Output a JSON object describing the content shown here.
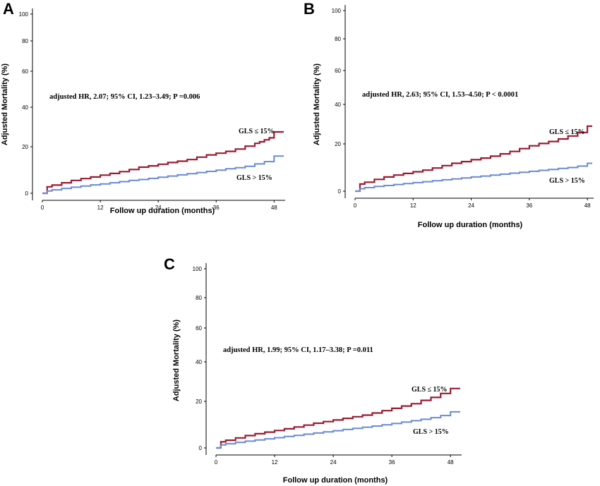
{
  "chart_data": [
    {
      "id": "A",
      "panel_label": "A",
      "type": "line",
      "xlabel": "Follow up duration (months)",
      "ylabel": "Adjusted Mortality (%)",
      "xticks": [
        "0",
        "12",
        "24",
        "36",
        "48"
      ],
      "yticks": [
        "0",
        "20",
        "40",
        "60",
        "80",
        "100"
      ],
      "xlim": [
        0,
        50
      ],
      "ylim": [
        0,
        100
      ],
      "annotation": "adjusted HR, 2.07; 95% CI, 1.23–3.49; P =0.006",
      "series": [
        {
          "name": "GLS ≤ 15%",
          "color": "#9b1b30",
          "x": [
            0,
            1,
            2,
            4,
            6,
            8,
            10,
            12,
            14,
            16,
            18,
            20,
            22,
            24,
            26,
            28,
            30,
            32,
            34,
            36,
            38,
            40,
            42,
            44,
            45,
            46,
            47,
            48,
            50
          ],
          "y": [
            0,
            2.8,
            3.5,
            4.5,
            5.5,
            6.3,
            7.0,
            7.8,
            8.5,
            9.3,
            10.2,
            11.2,
            11.8,
            12.5,
            13.2,
            13.8,
            14.5,
            15.5,
            16.5,
            17.2,
            18.0,
            19.0,
            20.3,
            21.7,
            22.5,
            23.5,
            24.5,
            27.5,
            27.5
          ]
        },
        {
          "name": "GLS > 15%",
          "color": "#6a8ad4",
          "x": [
            0,
            1,
            2,
            4,
            6,
            8,
            10,
            12,
            14,
            16,
            18,
            20,
            22,
            24,
            26,
            28,
            30,
            32,
            34,
            36,
            38,
            40,
            42,
            44,
            46,
            48,
            50
          ],
          "y": [
            0,
            1.0,
            1.5,
            2.1,
            2.6,
            3.1,
            3.6,
            4.0,
            4.5,
            5.0,
            5.5,
            5.9,
            6.4,
            6.9,
            7.4,
            7.9,
            8.4,
            8.9,
            9.4,
            9.9,
            10.5,
            11.0,
            11.6,
            12.6,
            13.6,
            16.0,
            16.0
          ]
        }
      ]
    },
    {
      "id": "B",
      "panel_label": "B",
      "type": "line",
      "xlabel": "Follow up duration (months)",
      "ylabel": "Adjusted Mortality (%)",
      "xticks": [
        "0",
        "12",
        "24",
        "36",
        "48"
      ],
      "yticks": [
        "0",
        "20",
        "40",
        "60",
        "80",
        "100"
      ],
      "xlim": [
        0,
        49
      ],
      "ylim": [
        0,
        100
      ],
      "annotation": "adjusted HR, 2.63; 95% CI, 1.53–4.50; P < 0.0001",
      "series": [
        {
          "name": "GLS ≤ 15%",
          "color": "#9b1b30",
          "x": [
            0,
            1,
            2,
            4,
            6,
            8,
            10,
            12,
            14,
            16,
            18,
            20,
            22,
            24,
            26,
            28,
            30,
            32,
            34,
            36,
            38,
            40,
            42,
            44,
            46,
            48,
            49
          ],
          "y": [
            0,
            3.0,
            3.8,
            5.0,
            6.0,
            6.8,
            7.5,
            8.2,
            8.9,
            9.8,
            10.8,
            11.8,
            12.5,
            13.3,
            14.0,
            14.8,
            15.8,
            16.8,
            18.0,
            19.2,
            20.2,
            21.2,
            22.5,
            24.0,
            25.8,
            29.0,
            29.0
          ]
        },
        {
          "name": "GLS > 15%",
          "color": "#6a8ad4",
          "x": [
            0,
            1,
            2,
            4,
            6,
            8,
            10,
            12,
            14,
            16,
            18,
            20,
            22,
            24,
            26,
            28,
            30,
            32,
            34,
            36,
            38,
            40,
            42,
            44,
            46,
            48,
            49
          ],
          "y": [
            0,
            1.0,
            1.5,
            2.0,
            2.4,
            2.8,
            3.2,
            3.6,
            4.0,
            4.4,
            4.8,
            5.2,
            5.6,
            6.0,
            6.4,
            6.8,
            7.2,
            7.6,
            8.0,
            8.4,
            8.8,
            9.2,
            9.6,
            10.0,
            10.6,
            11.8,
            11.8
          ]
        }
      ]
    },
    {
      "id": "C",
      "panel_label": "C",
      "type": "line",
      "xlabel": "Follow up duration (months)",
      "ylabel": "Adjusted Mortality (%)",
      "xticks": [
        "0",
        "12",
        "24",
        "36",
        "48"
      ],
      "yticks": [
        "0",
        "20",
        "40",
        "60",
        "80",
        "100"
      ],
      "xlim": [
        0,
        50
      ],
      "ylim": [
        0,
        100
      ],
      "annotation": "adjusted HR, 1.99; 95% CI, 1.17–3.38; P =0.011",
      "series": [
        {
          "name": "GLS ≤ 15%",
          "color": "#9b1b30",
          "x": [
            0,
            1,
            2,
            4,
            6,
            8,
            10,
            12,
            14,
            16,
            18,
            20,
            22,
            24,
            26,
            28,
            30,
            32,
            34,
            36,
            38,
            40,
            42,
            44,
            46,
            48,
            50
          ],
          "y": [
            0,
            2.6,
            3.3,
            4.3,
            5.3,
            6.1,
            6.8,
            7.5,
            8.2,
            9.0,
            9.8,
            10.6,
            11.3,
            12.0,
            12.7,
            13.4,
            14.1,
            15.0,
            16.0,
            17.0,
            18.0,
            19.0,
            20.5,
            22.0,
            24.0,
            26.5,
            26.5
          ]
        },
        {
          "name": "GLS > 15%",
          "color": "#6a8ad4",
          "x": [
            0,
            1,
            2,
            4,
            6,
            8,
            10,
            12,
            14,
            16,
            18,
            20,
            22,
            24,
            26,
            28,
            30,
            32,
            34,
            36,
            38,
            40,
            42,
            44,
            46,
            48,
            50
          ],
          "y": [
            0,
            1.3,
            1.8,
            2.4,
            2.9,
            3.4,
            3.9,
            4.4,
            4.9,
            5.4,
            5.9,
            6.4,
            6.9,
            7.4,
            7.9,
            8.4,
            8.9,
            9.4,
            9.9,
            10.5,
            11.1,
            11.7,
            12.3,
            13.0,
            13.9,
            15.5,
            15.5
          ]
        }
      ]
    }
  ]
}
